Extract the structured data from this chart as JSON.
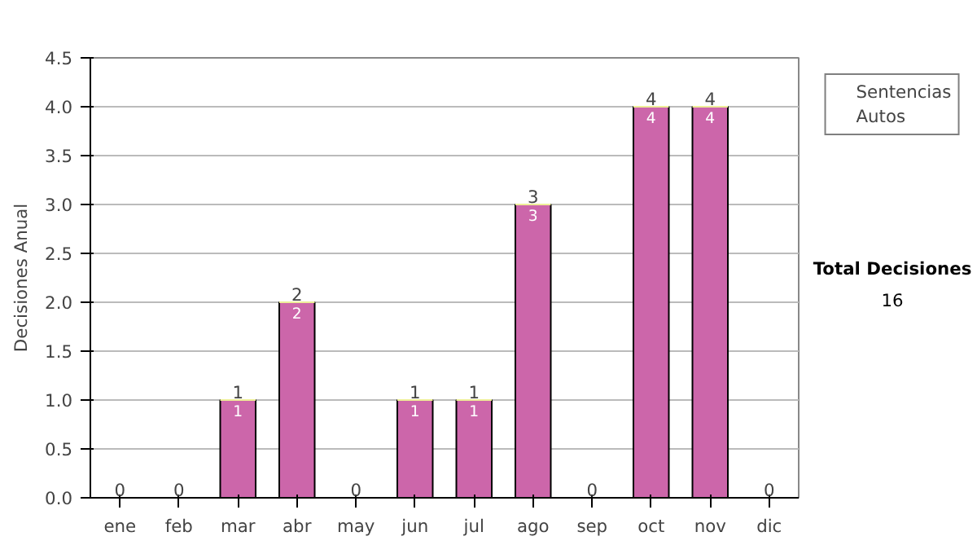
{
  "chart_data": {
    "type": "bar",
    "stacked": true,
    "ylabel": "Decisiones Anual",
    "categories": [
      "ene",
      "feb",
      "mar",
      "abr",
      "may",
      "jun",
      "jul",
      "ago",
      "sep",
      "oct",
      "nov",
      "dic"
    ],
    "series": [
      {
        "name": "Sentencias",
        "color": "#cc66aa",
        "values": [
          0,
          0,
          1,
          2,
          0,
          1,
          1,
          3,
          0,
          4,
          4,
          0
        ],
        "value_labels": [
          null,
          null,
          "1",
          "2",
          null,
          "1",
          "1",
          "3",
          null,
          "4",
          "4",
          null
        ]
      },
      {
        "name": "Autos",
        "color": "#eeee99",
        "values": [
          0,
          0,
          0,
          0,
          0,
          0,
          0,
          0,
          0,
          0,
          0,
          0
        ]
      }
    ],
    "totals": [
      "0",
      "0",
      "1",
      "2",
      "0",
      "1",
      "1",
      "3",
      "0",
      "4",
      "4",
      "0"
    ],
    "ylim": [
      0,
      4.5
    ],
    "yticks": [
      {
        "value": 0,
        "label": "0.0"
      },
      {
        "value": 0.5,
        "label": "0.5"
      },
      {
        "value": 1,
        "label": "1.0"
      },
      {
        "value": 1.5,
        "label": "1.5"
      },
      {
        "value": 2,
        "label": "2.0"
      },
      {
        "value": 2.5,
        "label": "2.5"
      },
      {
        "value": 3,
        "label": "3.0"
      },
      {
        "value": 3.5,
        "label": "3.5"
      },
      {
        "value": 4,
        "label": "4.0"
      },
      {
        "value": 4.5,
        "label": "4.5"
      }
    ],
    "grid": "y",
    "legend": "right",
    "annotations": [
      "Total Decisiones",
      "16"
    ]
  }
}
